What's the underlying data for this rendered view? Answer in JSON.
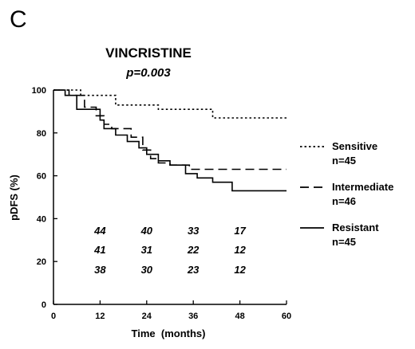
{
  "figure": {
    "panel_label": "C",
    "title": "VINCRISTINE",
    "p_value": "p=0.003"
  },
  "chart_data": {
    "type": "line",
    "title": "VINCRISTINE",
    "subtitle": "p=0.003",
    "xlabel": "Time  (months)",
    "ylabel": "pDFS  (%)",
    "xlim": [
      0,
      60
    ],
    "ylim": [
      0,
      100
    ],
    "xticks": [
      0,
      12,
      24,
      36,
      48,
      60
    ],
    "yticks": [
      0,
      20,
      40,
      60,
      80,
      100
    ],
    "grid": false,
    "legend_position": "right",
    "series": [
      {
        "name": "Sensitive",
        "n_label": "n=45",
        "style": "dotted",
        "x": [
          0,
          7,
          7,
          16,
          16,
          27,
          27,
          41,
          41,
          60
        ],
        "y": [
          100,
          100,
          97.5,
          97.5,
          93,
          93,
          91,
          91,
          87,
          87
        ]
      },
      {
        "name": "Intermediate",
        "n_label": "n=46",
        "style": "dashed",
        "x": [
          0,
          4,
          4,
          8,
          8,
          11,
          11,
          13,
          13,
          15,
          15,
          20,
          20,
          23,
          23,
          25,
          25,
          27,
          27,
          30,
          30,
          35,
          35,
          60
        ],
        "y": [
          100,
          100,
          97.5,
          97.5,
          92,
          92,
          88,
          88,
          84,
          84,
          82,
          82,
          78,
          78,
          72,
          72,
          68,
          68,
          66,
          66,
          65,
          65,
          63,
          63
        ]
      },
      {
        "name": "Resistant",
        "n_label": "n=45",
        "style": "solid",
        "x": [
          0,
          3,
          3,
          6,
          6,
          12,
          12,
          13,
          13,
          16,
          16,
          19,
          19,
          22,
          22,
          24,
          24,
          27,
          27,
          30,
          30,
          34,
          34,
          37,
          37,
          41,
          41,
          46,
          46,
          60
        ],
        "y": [
          100,
          100,
          97.5,
          97.5,
          91,
          91,
          86,
          86,
          82,
          82,
          79,
          79,
          76,
          76,
          73,
          73,
          70,
          70,
          67,
          67,
          65,
          65,
          61,
          61,
          59,
          59,
          57,
          57,
          53,
          53
        ]
      }
    ],
    "numbers_at_risk": {
      "times": [
        12,
        24,
        36,
        48
      ],
      "rows": [
        [
          "44",
          "40",
          "33",
          "17"
        ],
        [
          "41",
          "31",
          "22",
          "12"
        ],
        [
          "38",
          "30",
          "23",
          "12"
        ]
      ]
    }
  }
}
